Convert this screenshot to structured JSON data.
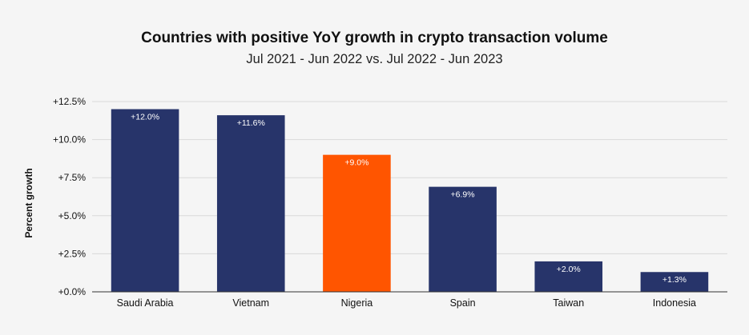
{
  "chart_data": {
    "type": "bar",
    "title": "Countries with positive YoY growth in crypto transaction volume",
    "subtitle": "Jul 2021 - Jun 2022 vs. Jul 2022 - Jun 2023",
    "xlabel": "",
    "ylabel": "Percent growth",
    "ylim": [
      0,
      12.5
    ],
    "yticks": [
      0,
      2.5,
      5,
      7.5,
      10,
      12.5
    ],
    "ytick_labels": [
      "+0.0%",
      "+2.5%",
      "+5.0%",
      "+7.5%",
      "+10.0%",
      "+12.5%"
    ],
    "grid": true,
    "legend": "none",
    "categories": [
      "Saudi Arabia",
      "Vietnam",
      "Nigeria",
      "Spain",
      "Taiwan",
      "Indonesia"
    ],
    "values": [
      12.0,
      11.6,
      9.0,
      6.9,
      2.0,
      1.3
    ],
    "data_labels": [
      "+12.0%",
      "+11.6%",
      "+9.0%",
      "+6.9%",
      "+2.0%",
      "+1.3%"
    ],
    "bar_colors": [
      "#27346a",
      "#27346a",
      "#ff5500",
      "#27346a",
      "#27346a",
      "#27346a"
    ],
    "colors": {
      "default_bar": "#27346a",
      "highlight_bar": "#ff5500",
      "grid": "#d9d9d9",
      "axis": "#333333",
      "background": "#f5f5f5"
    }
  }
}
